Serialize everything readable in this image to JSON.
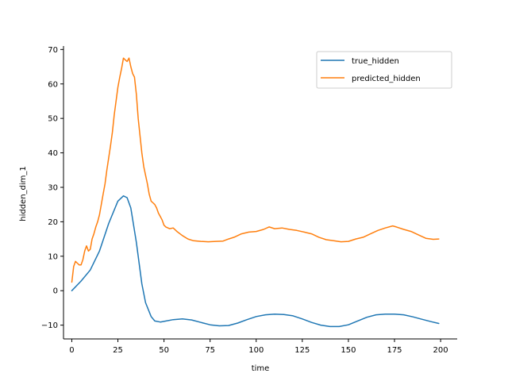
{
  "chart_data": {
    "type": "line",
    "title": "",
    "xlabel": "time",
    "ylabel": "hidden_dim_1",
    "xlim": [
      -4.5,
      209
    ],
    "ylim": [
      -14,
      71
    ],
    "xticks": [
      0,
      25,
      50,
      75,
      100,
      125,
      150,
      175,
      200
    ],
    "yticks": [
      -10,
      0,
      10,
      20,
      30,
      40,
      50,
      60,
      70
    ],
    "grid": false,
    "legend": {
      "position": "top-right"
    },
    "series": [
      {
        "name": "true_hidden",
        "color": "#1f77b4",
        "x": [
          0,
          5,
          10,
          15,
          20,
          25,
          28,
          30,
          32,
          35,
          38,
          40,
          43,
          45,
          48,
          50,
          55,
          60,
          65,
          70,
          75,
          80,
          85,
          90,
          95,
          100,
          105,
          110,
          115,
          120,
          125,
          130,
          135,
          140,
          145,
          150,
          155,
          160,
          165,
          170,
          175,
          180,
          185,
          190,
          195,
          199
        ],
        "y": [
          0,
          2.8,
          6,
          11.5,
          19.5,
          26,
          27.5,
          27,
          24,
          14,
          2,
          -3.5,
          -7.5,
          -8.8,
          -9.1,
          -8.9,
          -8.4,
          -8.2,
          -8.5,
          -9.2,
          -9.9,
          -10.2,
          -10.1,
          -9.4,
          -8.4,
          -7.5,
          -7,
          -6.8,
          -6.9,
          -7.3,
          -8.2,
          -9.2,
          -10,
          -10.4,
          -10.4,
          -9.9,
          -8.8,
          -7.7,
          -7,
          -6.8,
          -6.8,
          -7,
          -7.6,
          -8.3,
          -9,
          -9.5
        ]
      },
      {
        "name": "predicted_hidden",
        "color": "#ff7f0e",
        "x": [
          0,
          1,
          2,
          3,
          4,
          5,
          6,
          7,
          8,
          9,
          10,
          11,
          12,
          13,
          14,
          15,
          16,
          17,
          18,
          19,
          20,
          21,
          22,
          23,
          24,
          25,
          26,
          27,
          28,
          29,
          30,
          31,
          32,
          33,
          34,
          35,
          36,
          37,
          38,
          39,
          40,
          41,
          42,
          43,
          44,
          45,
          46,
          47,
          48,
          49,
          50,
          51,
          53,
          55,
          57,
          60,
          63,
          66,
          70,
          74,
          78,
          82,
          85,
          88,
          92,
          96,
          100,
          104,
          107,
          110,
          114,
          118,
          122,
          126,
          130,
          134,
          138,
          142,
          146,
          150,
          154,
          158,
          162,
          166,
          170,
          174,
          176,
          180,
          184,
          188,
          192,
          196,
          199
        ],
        "y": [
          2.5,
          7,
          8.5,
          8,
          7.5,
          7.5,
          9,
          11.5,
          13,
          11.5,
          12,
          15,
          16.5,
          18.5,
          20,
          22,
          25,
          28,
          31,
          35,
          38.5,
          42,
          46,
          51,
          55,
          59,
          62,
          64.5,
          67.5,
          67,
          66.5,
          67.5,
          65,
          63,
          62,
          57,
          50,
          45,
          40,
          36,
          33.5,
          31,
          28,
          26,
          25.5,
          25,
          24,
          22.5,
          21.5,
          20.5,
          19,
          18.5,
          18,
          18.2,
          17.2,
          16,
          15,
          14.5,
          14.3,
          14.2,
          14.3,
          14.4,
          15,
          15.5,
          16.5,
          17,
          17.2,
          17.8,
          18.5,
          18,
          18.2,
          17.8,
          17.5,
          17,
          16.5,
          15.5,
          14.8,
          14.5,
          14.2,
          14.3,
          15,
          15.5,
          16.5,
          17.5,
          18.2,
          18.8,
          18.5,
          17.8,
          17.2,
          16.2,
          15.2,
          14.9,
          15
        ]
      }
    ]
  }
}
